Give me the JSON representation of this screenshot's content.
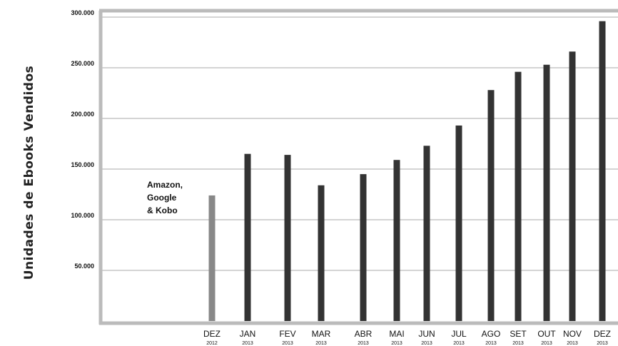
{
  "chart_data": {
    "type": "bar",
    "ylabel": "Unidades de Ebooks Vendidos",
    "ylim": [
      0,
      300000
    ],
    "yticks": [
      {
        "value": 50000,
        "label": "50.000"
      },
      {
        "value": 100000,
        "label": "100.000"
      },
      {
        "value": 150000,
        "label": "150.000"
      },
      {
        "value": 200000,
        "label": "200.000"
      },
      {
        "value": 250000,
        "label": "250.000"
      },
      {
        "value": 300000,
        "label": "300.000"
      }
    ],
    "grid": true,
    "categories": [
      {
        "month": "DEZ",
        "year": "2012"
      },
      {
        "month": "JAN",
        "year": "2013"
      },
      {
        "month": "FEV",
        "year": "2013"
      },
      {
        "month": "MAR",
        "year": "2013"
      },
      {
        "month": "ABR",
        "year": "2013"
      },
      {
        "month": "MAI",
        "year": "2013"
      },
      {
        "month": "JUN",
        "year": "2013"
      },
      {
        "month": "JUL",
        "year": "2013"
      },
      {
        "month": "AGO",
        "year": "2013"
      },
      {
        "month": "SET",
        "year": "2013"
      },
      {
        "month": "OUT",
        "year": "2013"
      },
      {
        "month": "NOV",
        "year": "2013"
      },
      {
        "month": "DEZ",
        "year": "2013"
      }
    ],
    "values": [
      124000,
      165000,
      164000,
      134000,
      145000,
      159000,
      173000,
      193000,
      228000,
      246000,
      253000,
      266000,
      296000
    ],
    "colors": {
      "highlight_bar": "#888888",
      "bar": "#333333",
      "frame": "#bbbbbb",
      "grid": "#aaaaaa"
    },
    "annotation": {
      "lines": [
        "Amazon,",
        "Google",
        "& Kobo"
      ],
      "category_index": 0
    }
  }
}
